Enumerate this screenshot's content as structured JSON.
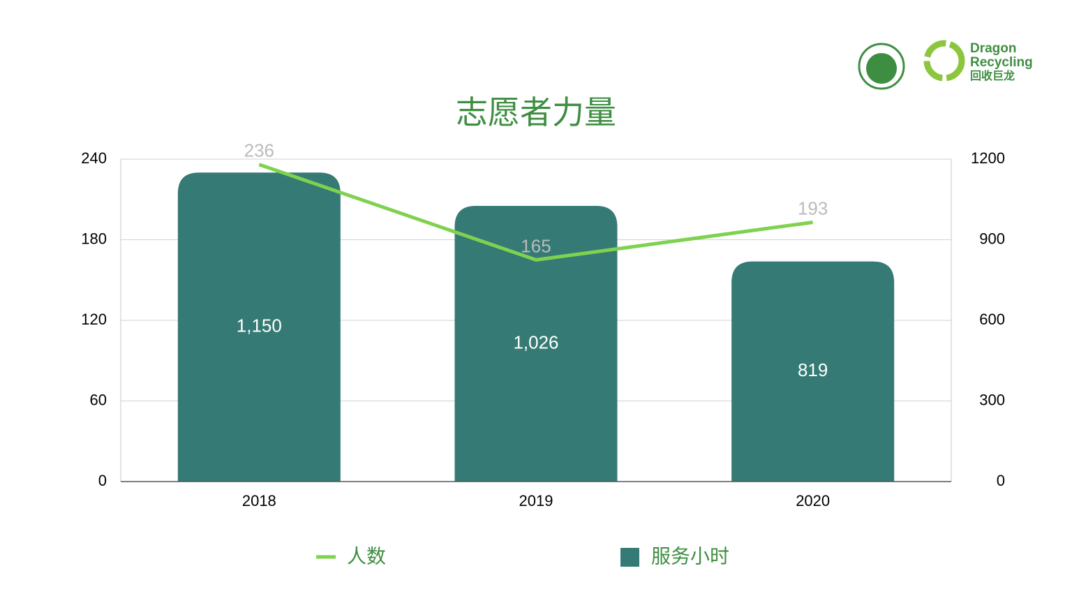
{
  "logo": {
    "line1": "Dragon",
    "line2": "Recycling",
    "line3": "回收巨龙"
  },
  "chart_data": {
    "type": "combo",
    "title": "志愿者力量",
    "categories": [
      "2018",
      "2019",
      "2020"
    ],
    "series": [
      {
        "name": "人数",
        "type": "line",
        "color": "#7ed24f",
        "values": [
          236,
          165,
          193
        ]
      },
      {
        "name": "服务小时",
        "type": "bar",
        "axis": "y2",
        "color": "#357a74",
        "values": [
          1150,
          1026,
          819
        ],
        "value_labels": [
          "1,150",
          "1,026",
          "819"
        ]
      }
    ],
    "ylim": [
      0,
      240
    ],
    "yticks": [
      0,
      60,
      120,
      180,
      240
    ],
    "y2lim": [
      0,
      1200
    ],
    "y2ticks": [
      0,
      300,
      600,
      900,
      1200
    ],
    "grid": true,
    "legend": "bottom"
  }
}
